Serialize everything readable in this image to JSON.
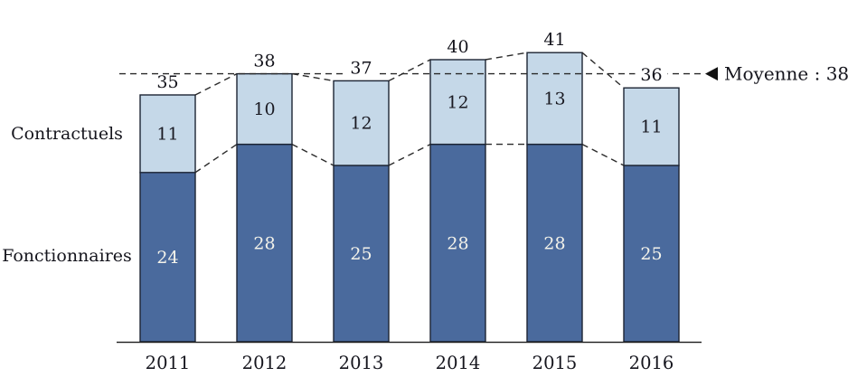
{
  "chart_data": {
    "type": "bar",
    "stacked": true,
    "title": "",
    "xlabel": "",
    "ylabel": "",
    "categories": [
      "2011",
      "2012",
      "2013",
      "2014",
      "2015",
      "2016"
    ],
    "series": [
      {
        "name": "Fonctionnaires",
        "values": [
          24,
          28,
          25,
          28,
          28,
          25
        ],
        "color": "#4A6A9D",
        "label_color": "#F4F3EA"
      },
      {
        "name": "Contractuels",
        "values": [
          11,
          10,
          12,
          12,
          13,
          11
        ],
        "color": "#C5D8E8",
        "label_color": "#1A1A22"
      }
    ],
    "totals": [
      35,
      38,
      37,
      40,
      41,
      36
    ],
    "average": {
      "value": 38,
      "label": "Moyenne : 38"
    },
    "ylim": [
      0,
      43
    ],
    "grid": false,
    "legend_position": "left-inline",
    "annotations": [
      "dashed line linking bar tops",
      "dashed line linking segment boundaries",
      "horizontal dashed average line with left-pointing arrow"
    ]
  },
  "colors": {
    "bar_dark": "#4A6A9D",
    "bar_light": "#C5D8E8",
    "bar_stroke": "#1C2433",
    "dash_line": "#2A2A2A",
    "axis": "#1A1A1A",
    "text_dark": "#15151d"
  }
}
